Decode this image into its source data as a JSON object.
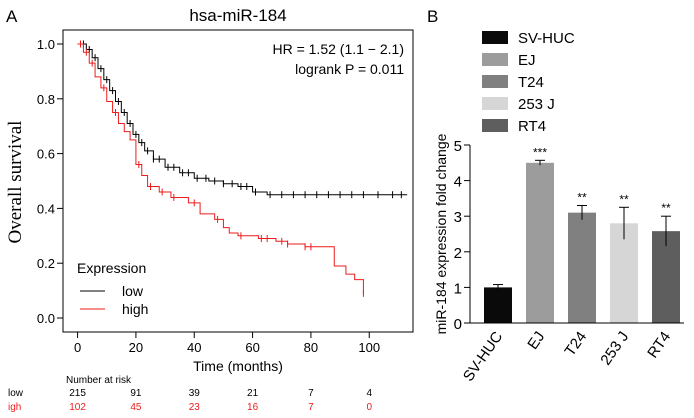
{
  "chart_data": [
    {
      "panel_label": "A",
      "type": "line",
      "subtype": "kaplan-meier",
      "title": "hsa-miR-184",
      "xlabel": "Time (months)",
      "ylabel": "Overall survival",
      "xlim": [
        -5,
        115
      ],
      "ylim": [
        0,
        1.0
      ],
      "xticks": [
        0,
        20,
        40,
        60,
        80,
        100
      ],
      "yticks": [
        0.0,
        0.2,
        0.4,
        0.6,
        0.8,
        1.0
      ],
      "ytick_labels": [
        "0.0",
        "0.2",
        "0.4",
        "0.6",
        "0.8",
        "1.0"
      ],
      "annotations": [
        "HR = 1.52 (1.1 − 2.1)",
        "logrank P = 0.011"
      ],
      "legend": {
        "title": "Expression",
        "position": "bottom-left",
        "labels": [
          "low",
          "high"
        ]
      },
      "series": [
        {
          "name": "low",
          "color": "#000000",
          "x": [
            0,
            3,
            5,
            7,
            9,
            11,
            13,
            15,
            17,
            19,
            21,
            23,
            26,
            30,
            35,
            40,
            45,
            50,
            55,
            60,
            65,
            80,
            100,
            113
          ],
          "y": [
            1.0,
            0.98,
            0.95,
            0.91,
            0.87,
            0.83,
            0.79,
            0.75,
            0.71,
            0.67,
            0.64,
            0.61,
            0.58,
            0.55,
            0.53,
            0.51,
            0.5,
            0.49,
            0.48,
            0.46,
            0.45,
            0.45,
            0.45,
            0.45
          ],
          "censor_x": [
            2,
            4,
            6,
            8,
            10,
            12,
            14,
            16,
            18,
            20,
            22,
            24,
            26,
            28,
            31,
            33,
            36,
            38,
            41,
            44,
            47,
            50,
            53,
            56,
            58,
            61,
            66,
            70,
            74,
            78,
            82,
            86,
            90,
            94,
            98,
            103,
            108,
            111
          ]
        },
        {
          "name": "high",
          "color": "#ee1c1c",
          "x": [
            0,
            2,
            4,
            6,
            8,
            10,
            12,
            14,
            16,
            18,
            20,
            22,
            24,
            28,
            32,
            38,
            42,
            47,
            50,
            52,
            55,
            62,
            68,
            72,
            78,
            85,
            88,
            92,
            95,
            98
          ],
          "y": [
            1.0,
            0.97,
            0.93,
            0.88,
            0.84,
            0.79,
            0.75,
            0.71,
            0.68,
            0.65,
            0.56,
            0.52,
            0.48,
            0.46,
            0.44,
            0.42,
            0.38,
            0.36,
            0.33,
            0.31,
            0.3,
            0.29,
            0.28,
            0.27,
            0.26,
            0.26,
            0.19,
            0.16,
            0.14,
            0.09
          ],
          "censor_x": [
            1,
            3,
            5,
            9,
            13,
            21,
            25,
            29,
            33,
            40,
            48,
            56,
            63,
            65,
            70,
            72,
            78,
            80,
            98
          ]
        }
      ],
      "risk_table": {
        "header": "Number at risk",
        "times": [
          0,
          20,
          40,
          60,
          80,
          100
        ],
        "rows": [
          {
            "label": "low",
            "color": "#000000",
            "values": [
              "215",
              "91",
              "39",
              "21",
              "7",
              "4"
            ]
          },
          {
            "label": "igh",
            "color": "#ee1c1c",
            "values": [
              "102",
              "45",
              "23",
              "16",
              "7",
              "0"
            ]
          }
        ]
      }
    },
    {
      "panel_label": "B",
      "type": "bar",
      "title": "",
      "xlabel": "",
      "ylabel": "miR-184 expression fold change",
      "ylim": [
        0,
        5
      ],
      "yticks": [
        0,
        1,
        2,
        3,
        4,
        5
      ],
      "categories": [
        "SV-HUC",
        "EJ",
        "T24",
        "253 J",
        "RT4"
      ],
      "values": [
        1.0,
        4.5,
        3.1,
        2.8,
        2.58
      ],
      "errors": [
        0.08,
        0.07,
        0.2,
        0.45,
        0.42
      ],
      "significance": [
        "",
        "***",
        "**",
        "**",
        "**"
      ],
      "colors": [
        "#0a0a0a",
        "#9c9c9c",
        "#808080",
        "#d6d6d6",
        "#5e5e5e"
      ],
      "legend": {
        "position": "top",
        "labels": [
          "SV-HUC",
          "EJ",
          "T24",
          "253 J",
          "RT4"
        ]
      }
    }
  ]
}
